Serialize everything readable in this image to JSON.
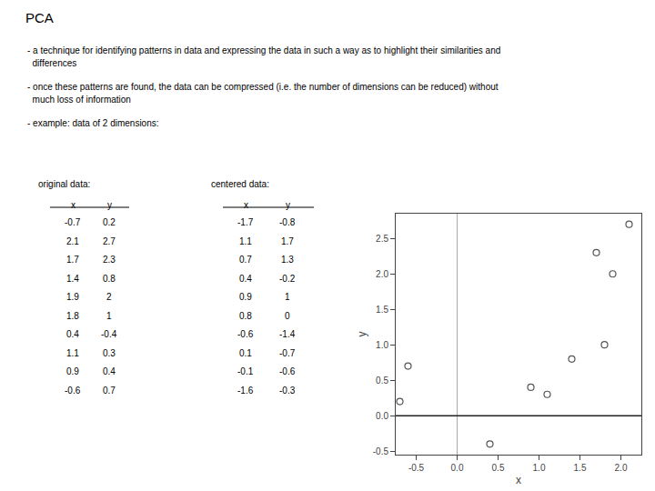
{
  "chart_data": {
    "type": "scatter",
    "title": "PCA",
    "annotations": [
      "- a technique for identifying patterns in data and expressing the data in such a way as to highlight their similarities and",
      "  differences",
      "- once these patterns are found, the data can be compressed (i.e. the number of dimensions can be reduced) without",
      "  much loss of information",
      "- example: data of 2 dimensions:"
    ],
    "tables": [
      {
        "title": "original data:",
        "columns": [
          "x",
          "y"
        ],
        "x": [
          -0.7,
          2.1,
          1.7,
          1.4,
          1.9,
          1.8,
          0.4,
          1.1,
          0.9,
          -0.6
        ],
        "y": [
          0.2,
          2.7,
          2.3,
          0.8,
          2.0,
          1.0,
          -0.4,
          0.3,
          0.4,
          0.7
        ]
      },
      {
        "title": "centered data:",
        "columns": [
          "x",
          "y"
        ],
        "x": [
          -1.7,
          1.1,
          0.7,
          0.4,
          0.9,
          0.8,
          -0.6,
          0.1,
          -0.1,
          -1.6
        ],
        "y": [
          -0.8,
          1.7,
          1.3,
          -0.2,
          1.0,
          0,
          -1.4,
          -0.7,
          -0.6,
          -0.3
        ]
      }
    ],
    "x": [
      -0.7,
      2.1,
      1.7,
      1.4,
      1.9,
      1.8,
      0.4,
      1.1,
      0.9,
      -0.6
    ],
    "values": [
      0.2,
      2.7,
      2.3,
      0.8,
      2.0,
      1.0,
      -0.4,
      0.3,
      0.4,
      0.7
    ],
    "xlabel": "x",
    "ylabel": "y",
    "xlim": [
      -0.75,
      2.25
    ],
    "ylim": [
      -0.55,
      2.85
    ],
    "xticks": [
      -0.5,
      {
        "value": 0,
        "label": "0.0"
      },
      0.5,
      {
        "value": 1,
        "label": "1.0"
      },
      1.5,
      {
        "value": 2,
        "label": "2.0"
      }
    ],
    "yticks": [
      -0.5,
      {
        "value": 0,
        "label": "0.0"
      },
      0.5,
      {
        "value": 1,
        "label": "1.0"
      },
      1.5,
      {
        "value": 2,
        "label": "2.0"
      },
      2.5
    ],
    "reference_lines": {
      "x": 0,
      "y": 0
    },
    "grid": false,
    "color": "#555555",
    "marker": "circle-open"
  }
}
